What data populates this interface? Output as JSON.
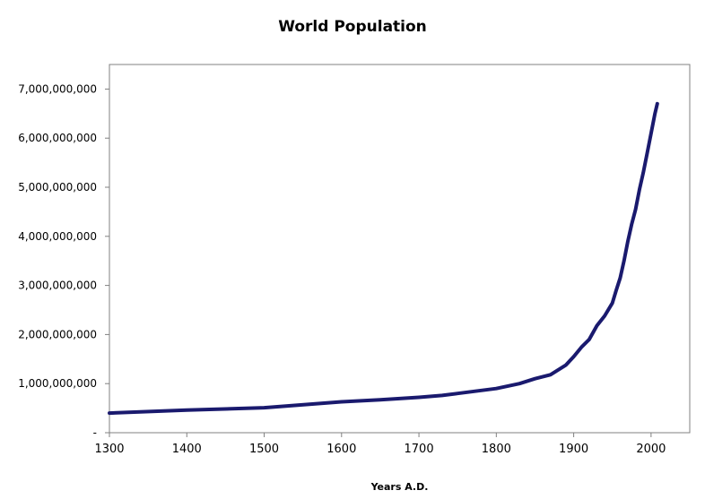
{
  "chart_data": {
    "type": "line",
    "title": "World Population",
    "xlabel": "Years A.D.",
    "ylabel": "",
    "xlim": [
      1300,
      2050
    ],
    "ylim": [
      0,
      7500000000
    ],
    "xticks": [
      1300,
      1400,
      1500,
      1600,
      1700,
      1800,
      1900,
      2000
    ],
    "yticks": [
      {
        "value": 0,
        "label": "-"
      },
      {
        "value": 1000000000,
        "label": "1,000,000,000"
      },
      {
        "value": 2000000000,
        "label": "2,000,000,000"
      },
      {
        "value": 3000000000,
        "label": "3,000,000,000"
      },
      {
        "value": 4000000000,
        "label": "4,000,000,000"
      },
      {
        "value": 5000000000,
        "label": "5,000,000,000"
      },
      {
        "value": 6000000000,
        "label": "6,000,000,000"
      },
      {
        "value": 7000000000,
        "label": "7,000,000,000"
      }
    ],
    "grid": false,
    "series": [
      {
        "color": "#1a1a6e",
        "x": [
          1300,
          1400,
          1500,
          1600,
          1650,
          1700,
          1730,
          1750,
          1800,
          1830,
          1850,
          1870,
          1890,
          1900,
          1910,
          1920,
          1930,
          1940,
          1950,
          1955,
          1960,
          1965,
          1970,
          1975,
          1980,
          1985,
          1990,
          1995,
          2000,
          2005,
          2008
        ],
        "values": [
          400000000,
          460000000,
          510000000,
          630000000,
          670000000,
          720000000,
          760000000,
          800000000,
          900000000,
          1000000000,
          1100000000,
          1180000000,
          1380000000,
          1550000000,
          1740000000,
          1900000000,
          2180000000,
          2380000000,
          2640000000,
          2900000000,
          3150000000,
          3500000000,
          3900000000,
          4250000000,
          4550000000,
          4950000000,
          5300000000,
          5700000000,
          6100000000,
          6500000000,
          6700000000
        ]
      }
    ]
  }
}
